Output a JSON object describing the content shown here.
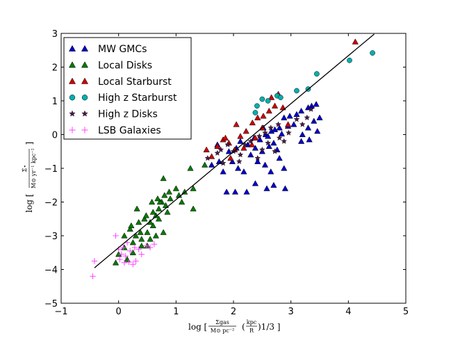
{
  "chart_data": {
    "type": "scatter",
    "title": "",
    "xlabel": {
      "prefix": "log [",
      "frac_num": "Σgas",
      "frac_den": "M⊙ pc⁻²",
      "paren_num": "kpc",
      "paren_den": "R",
      "suffix": ")1/3 ]"
    },
    "ylabel": {
      "prefix": "log [",
      "frac_num": "Σ̇⋆",
      "frac_den": "M⊙ yr⁻¹ kpc⁻²",
      "suffix": "]"
    },
    "xlim": [
      -1,
      5
    ],
    "ylim": [
      -5,
      3
    ],
    "xticks": [
      "−1",
      "0",
      "1",
      "2",
      "3",
      "4",
      "5"
    ],
    "yticks": [
      "−5",
      "−4",
      "−3",
      "−2",
      "−1",
      "0",
      "1",
      "2",
      "3"
    ],
    "grid": false,
    "legend_position": "top-left",
    "fit_line": {
      "x": [
        -0.42,
        4.45
      ],
      "y": [
        -3.95,
        2.98
      ],
      "color": "#000000"
    },
    "series": [
      {
        "name": "MW GMCs",
        "marker": "triangle",
        "color": "#0000cc",
        "points": [
          [
            1.88,
            -1.7
          ],
          [
            2.03,
            -1.7
          ],
          [
            2.23,
            -1.7
          ],
          [
            2.38,
            -1.45
          ],
          [
            2.58,
            -1.6
          ],
          [
            2.7,
            -1.5
          ],
          [
            2.9,
            -1.6
          ],
          [
            1.62,
            -0.9
          ],
          [
            1.75,
            -0.8
          ],
          [
            1.82,
            -1.1
          ],
          [
            1.98,
            -0.8
          ],
          [
            2.08,
            -1.0
          ],
          [
            2.18,
            -1.1
          ],
          [
            2.3,
            -0.6
          ],
          [
            2.42,
            -0.8
          ],
          [
            2.55,
            -0.9
          ],
          [
            2.65,
            -1.1
          ],
          [
            2.8,
            -0.7
          ],
          [
            2.88,
            -1.0
          ],
          [
            1.92,
            -0.5
          ],
          [
            2.05,
            -0.4
          ],
          [
            2.25,
            -0.3
          ],
          [
            2.38,
            -0.4
          ],
          [
            2.5,
            -0.5
          ],
          [
            2.62,
            -0.35
          ],
          [
            2.76,
            -0.45
          ],
          [
            2.36,
            -0.1
          ],
          [
            2.46,
            -0.15
          ],
          [
            2.56,
            0.0
          ],
          [
            2.66,
            0.1
          ],
          [
            2.72,
            0.15
          ],
          [
            2.8,
            0.2
          ],
          [
            2.95,
            0.25
          ],
          [
            3.05,
            0.3
          ],
          [
            3.2,
            0.0
          ],
          [
            3.3,
            0.2
          ],
          [
            3.4,
            0.4
          ],
          [
            2.88,
            0.5
          ],
          [
            2.98,
            0.55
          ],
          [
            3.1,
            0.6
          ],
          [
            3.18,
            0.7
          ],
          [
            3.3,
            0.8
          ],
          [
            3.36,
            0.85
          ],
          [
            3.44,
            0.9
          ],
          [
            3.5,
            0.5
          ],
          [
            3.18,
            -0.2
          ],
          [
            3.32,
            -0.15
          ],
          [
            3.46,
            0.1
          ],
          [
            2.52,
            0.2
          ],
          [
            2.6,
            -0.05
          ],
          [
            2.7,
            -0.25
          ],
          [
            2.12,
            -0.2
          ],
          [
            1.72,
            -0.3
          ],
          [
            2.84,
            0.02
          ]
        ]
      },
      {
        "name": "Local Disks",
        "marker": "triangle",
        "color": "#007a00",
        "points": [
          [
            -0.05,
            -3.8
          ],
          [
            0.0,
            -3.55
          ],
          [
            0.1,
            -3.35
          ],
          [
            0.25,
            -3.2
          ],
          [
            0.3,
            -3.0
          ],
          [
            0.4,
            -3.1
          ],
          [
            0.5,
            -2.9
          ],
          [
            0.55,
            -2.6
          ],
          [
            0.6,
            -2.7
          ],
          [
            0.65,
            -2.4
          ],
          [
            0.7,
            -2.2
          ],
          [
            0.75,
            -2.0
          ],
          [
            0.8,
            -1.8
          ],
          [
            0.88,
            -1.7
          ],
          [
            0.1,
            -3.0
          ],
          [
            0.2,
            -2.8
          ],
          [
            0.35,
            -2.6
          ],
          [
            0.45,
            -2.5
          ],
          [
            0.6,
            -2.3
          ],
          [
            0.7,
            -2.5
          ],
          [
            0.78,
            -2.9
          ],
          [
            0.25,
            -3.5
          ],
          [
            0.15,
            -3.7
          ],
          [
            0.4,
            -3.3
          ],
          [
            0.55,
            -3.1
          ],
          [
            0.65,
            -3.0
          ],
          [
            0.72,
            -2.0
          ],
          [
            0.82,
            -2.1
          ],
          [
            0.9,
            -1.9
          ],
          [
            1.0,
            -1.6
          ],
          [
            1.05,
            -1.8
          ],
          [
            1.15,
            -1.7
          ],
          [
            1.3,
            -1.6
          ],
          [
            1.25,
            -1.0
          ],
          [
            1.5,
            -0.9
          ],
          [
            1.3,
            -2.2
          ],
          [
            1.1,
            -2.0
          ],
          [
            0.78,
            -1.3
          ],
          [
            0.68,
            -1.9
          ],
          [
            0.48,
            -2.4
          ],
          [
            0.32,
            -2.2
          ],
          [
            0.22,
            -2.7
          ],
          [
            0.58,
            -2.0
          ],
          [
            0.38,
            -2.9
          ],
          [
            0.85,
            -2.3
          ],
          [
            0.5,
            -3.3
          ]
        ]
      },
      {
        "name": "Local Starburst",
        "marker": "triangle",
        "color": "#cc0000",
        "points": [
          [
            1.53,
            -0.45
          ],
          [
            1.62,
            -0.65
          ],
          [
            1.72,
            -0.35
          ],
          [
            1.82,
            -0.15
          ],
          [
            1.92,
            -0.25
          ],
          [
            2.02,
            -0.45
          ],
          [
            2.12,
            -0.05
          ],
          [
            2.22,
            0.1
          ],
          [
            2.32,
            -0.3
          ],
          [
            2.42,
            0.5
          ],
          [
            2.52,
            0.55
          ],
          [
            2.62,
            0.7
          ],
          [
            2.72,
            0.85
          ],
          [
            2.78,
            1.2
          ],
          [
            2.86,
            0.8
          ],
          [
            2.95,
            0.3
          ],
          [
            2.5,
            0.2
          ],
          [
            2.18,
            -0.4
          ],
          [
            1.86,
            -0.1
          ],
          [
            2.05,
            0.3
          ],
          [
            4.12,
            2.75
          ],
          [
            2.33,
            0.35
          ],
          [
            2.66,
            1.1
          ],
          [
            1.95,
            -0.7
          ],
          [
            2.38,
            -0.1
          ]
        ]
      },
      {
        "name": "High z Starburst",
        "marker": "circle",
        "color": "#00b0b0",
        "points": [
          [
            2.38,
            0.65
          ],
          [
            2.41,
            0.85
          ],
          [
            2.5,
            1.05
          ],
          [
            2.6,
            1.0
          ],
          [
            2.76,
            1.15
          ],
          [
            2.82,
            1.1
          ],
          [
            3.1,
            1.3
          ],
          [
            3.3,
            1.35
          ],
          [
            3.45,
            1.8
          ],
          [
            4.02,
            2.2
          ],
          [
            4.42,
            2.42
          ]
        ]
      },
      {
        "name": "High z Disks",
        "marker": "star",
        "color": "#4a1a4a",
        "points": [
          [
            1.55,
            -0.7
          ],
          [
            1.72,
            -0.55
          ],
          [
            1.82,
            -0.85
          ],
          [
            1.9,
            -0.3
          ],
          [
            2.0,
            -0.5
          ],
          [
            2.12,
            -0.6
          ],
          [
            2.2,
            -0.3
          ],
          [
            2.3,
            -0.2
          ],
          [
            2.42,
            -0.7
          ],
          [
            2.5,
            -0.45
          ],
          [
            2.6,
            -0.25
          ],
          [
            2.72,
            -0.5
          ],
          [
            2.8,
            -0.1
          ],
          [
            2.88,
            -0.2
          ],
          [
            2.96,
            0.05
          ],
          [
            3.1,
            0.45
          ],
          [
            3.2,
            0.3
          ],
          [
            3.28,
            0.5
          ],
          [
            3.35,
            0.75
          ],
          [
            2.65,
            0.2
          ],
          [
            2.45,
            -0.05
          ],
          [
            2.1,
            -0.8
          ],
          [
            1.78,
            -0.45
          ],
          [
            2.55,
            0.05
          ],
          [
            2.78,
            0.3
          ]
        ]
      },
      {
        "name": "LSB Galaxies",
        "marker": "plus",
        "color": "#ff44ff",
        "points": [
          [
            -0.42,
            -3.75
          ],
          [
            -0.45,
            -4.2
          ],
          [
            -0.05,
            -3.0
          ],
          [
            0.0,
            -3.4
          ],
          [
            0.05,
            -3.55
          ],
          [
            0.1,
            -3.8
          ],
          [
            0.12,
            -3.6
          ],
          [
            0.15,
            -3.2
          ],
          [
            0.2,
            -3.45
          ],
          [
            0.25,
            -3.85
          ],
          [
            0.28,
            -3.35
          ],
          [
            0.3,
            -3.75
          ],
          [
            0.35,
            -3.4
          ],
          [
            0.4,
            -3.55
          ],
          [
            0.48,
            -3.3
          ],
          [
            0.55,
            -3.35
          ],
          [
            0.62,
            -3.25
          ],
          [
            0.18,
            -3.78
          ],
          [
            0.08,
            -3.35
          ],
          [
            0.02,
            -3.7
          ]
        ]
      }
    ]
  }
}
